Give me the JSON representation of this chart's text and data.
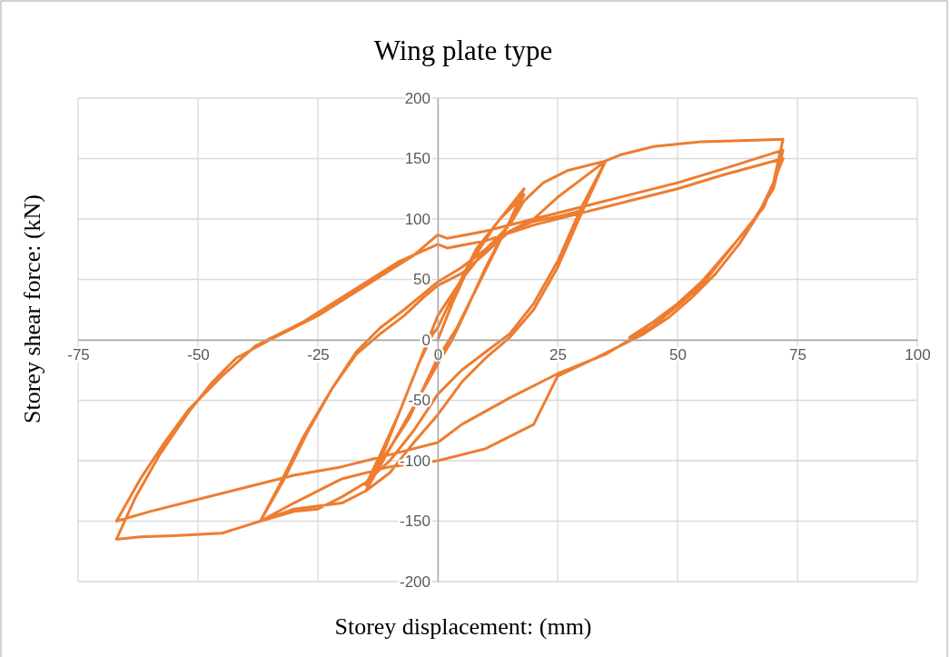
{
  "chart_data": {
    "type": "line",
    "title": "Wing plate type",
    "xlabel": "Storey displacement: (mm)",
    "ylabel": "Storey shear force: (kN)",
    "xlim": [
      -75,
      100
    ],
    "xticks": [
      -75,
      -50,
      -25,
      0,
      25,
      50,
      75,
      100
    ],
    "ylim": [
      -200,
      200
    ],
    "yticks": [
      -200,
      -150,
      -100,
      -50,
      0,
      50,
      100,
      150,
      200
    ],
    "grid": true,
    "series": [
      {
        "color": "#ed7d31",
        "x": [
          0,
          3,
          7,
          12,
          18,
          15,
          10,
          6,
          3,
          0,
          -5,
          -10,
          -15,
          -12,
          -8,
          -4,
          -1,
          0,
          3,
          8,
          13,
          18,
          14,
          9,
          4,
          0,
          -6,
          -15,
          -12,
          -8,
          -4,
          0,
          5,
          10,
          15,
          18,
          22,
          27,
          35,
          30,
          25,
          20,
          15,
          10,
          5,
          0,
          -5,
          -10,
          -15,
          -20,
          -25,
          -30,
          -37,
          -33,
          -28,
          -22,
          -17,
          -12,
          -7,
          -3,
          0,
          5,
          10,
          15,
          20,
          25,
          30,
          35,
          30,
          25,
          20,
          15,
          10,
          5,
          0,
          -5,
          -10,
          -15,
          -20,
          -30,
          -37,
          -32,
          -27,
          -22,
          -17,
          -12,
          -7,
          -3,
          0,
          5,
          10,
          15,
          20,
          25,
          30,
          35,
          38,
          45,
          55,
          65,
          72,
          70,
          67,
          63,
          58,
          53,
          48,
          43,
          38,
          33,
          25,
          20,
          10,
          0,
          -10,
          -20,
          -30,
          -37,
          -45,
          -55,
          -62,
          -67,
          -63,
          -58,
          -52,
          -47,
          -42,
          -35,
          -25,
          -15,
          -5,
          0,
          2,
          10,
          20,
          30,
          40,
          50,
          60,
          72,
          70,
          66,
          60,
          55,
          50,
          45,
          40,
          35,
          25,
          15,
          5,
          0,
          -10,
          -20,
          -30,
          -40,
          -50,
          -60,
          -67,
          -62,
          -57,
          -52,
          -45,
          -38,
          -28,
          -18,
          -8,
          0,
          2,
          10,
          20,
          30,
          40,
          50,
          60,
          72,
          68,
          62,
          55,
          50,
          45,
          40
        ],
        "values": [
          0,
          30,
          65,
          95,
          125,
          98,
          60,
          25,
          0,
          -20,
          -55,
          -90,
          -125,
          -100,
          -60,
          -20,
          5,
          10,
          35,
          75,
          100,
          120,
          90,
          50,
          10,
          -15,
          -65,
          -120,
          -95,
          -60,
          -20,
          20,
          50,
          75,
          95,
          115,
          130,
          140,
          148,
          110,
          65,
          30,
          5,
          -10,
          -25,
          -45,
          -75,
          -100,
          -118,
          -130,
          -140,
          -142,
          -150,
          -120,
          -80,
          -40,
          -10,
          10,
          25,
          38,
          48,
          60,
          75,
          90,
          100,
          118,
          133,
          148,
          105,
          60,
          25,
          2,
          -15,
          -35,
          -62,
          -85,
          -110,
          -125,
          -135,
          -140,
          -150,
          -115,
          -75,
          -40,
          -12,
          5,
          20,
          35,
          45,
          55,
          72,
          90,
          98,
          102,
          107,
          148,
          153,
          160,
          164,
          165,
          166,
          130,
          105,
          80,
          55,
          35,
          18,
          5,
          -5,
          -15,
          -30,
          -70,
          -90,
          -100,
          -105,
          -115,
          -135,
          -150,
          -160,
          -162,
          -163,
          -165,
          -130,
          -95,
          -60,
          -35,
          -15,
          0,
          20,
          45,
          70,
          87,
          84,
          90,
          100,
          110,
          120,
          130,
          142,
          157,
          125,
          100,
          70,
          45,
          28,
          12,
          0,
          -12,
          -28,
          -48,
          -70,
          -85,
          -95,
          -105,
          -112,
          -122,
          -132,
          -142,
          -150,
          -115,
          -85,
          -58,
          -30,
          -5,
          15,
          40,
          65,
          79,
          76,
          82,
          95,
          105,
          115,
          125,
          137,
          150,
          110,
          80,
          48,
          30,
          15,
          2
        ]
      }
    ]
  }
}
